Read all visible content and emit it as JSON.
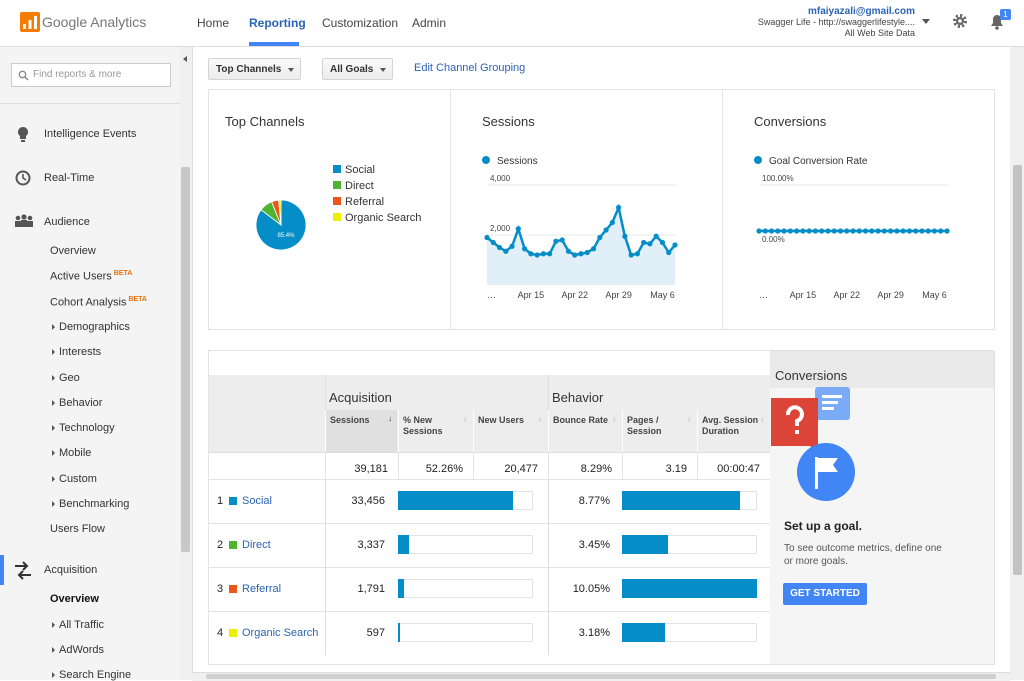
{
  "header": {
    "logo": "Google Analytics",
    "nav": [
      "Home",
      "Reporting",
      "Customization",
      "Admin"
    ],
    "account": {
      "email": "mfaiyazali@gmail.com",
      "property": "Swagger Life - http://swaggerlifestyle....",
      "view": "All Web Site Data"
    },
    "notifications": "1"
  },
  "sidebar": {
    "search_placeholder": "Find reports & more",
    "sections": [
      {
        "label": "Intelligence Events"
      },
      {
        "label": "Real-Time"
      },
      {
        "label": "Audience",
        "items": [
          {
            "label": "Overview"
          },
          {
            "label": "Active Users",
            "badge": "BETA"
          },
          {
            "label": "Cohort Analysis",
            "badge": "BETA"
          },
          {
            "label": "Demographics",
            "expandable": true
          },
          {
            "label": "Interests",
            "expandable": true
          },
          {
            "label": "Geo",
            "expandable": true
          },
          {
            "label": "Behavior",
            "expandable": true
          },
          {
            "label": "Technology",
            "expandable": true
          },
          {
            "label": "Mobile",
            "expandable": true
          },
          {
            "label": "Custom",
            "expandable": true
          },
          {
            "label": "Benchmarking",
            "expandable": true
          },
          {
            "label": "Users Flow"
          }
        ]
      },
      {
        "label": "Acquisition",
        "active": true,
        "items": [
          {
            "label": "Overview",
            "selected": true
          },
          {
            "label": "All Traffic",
            "expandable": true
          },
          {
            "label": "AdWords",
            "expandable": true
          },
          {
            "label": "Search Engine",
            "expandable": true
          }
        ]
      }
    ]
  },
  "toolbar": {
    "dimension": "Top Channels",
    "goal": "All Goals",
    "link": "Edit Channel Grouping"
  },
  "chart_data": [
    {
      "type": "pie",
      "title": "Top Channels",
      "categories": [
        "Social",
        "Direct",
        "Referral",
        "Organic Search"
      ],
      "values": [
        85.4,
        8.5,
        4.6,
        1.5
      ],
      "value_labels": [
        "85.4%",
        null,
        null,
        null
      ],
      "colors": [
        "#058dc7",
        "#50b432",
        "#ed561b",
        "#edef00"
      ]
    },
    {
      "type": "line",
      "title": "Sessions",
      "categories": [
        "…",
        null,
        null,
        null,
        null,
        null,
        null,
        "Apr 15",
        null,
        null,
        null,
        null,
        null,
        null,
        "Apr 22",
        null,
        null,
        null,
        null,
        null,
        null,
        "Apr 29",
        null,
        null,
        null,
        null,
        null,
        null,
        "May 6",
        null,
        null
      ],
      "series": [
        {
          "name": "Sessions",
          "color": "#058dc7",
          "values": [
            1900,
            1700,
            1500,
            1350,
            1550,
            2250,
            1450,
            1250,
            1200,
            1250,
            1250,
            1750,
            1800,
            1350,
            1200,
            1250,
            1300,
            1450,
            1900,
            2200,
            2500,
            3100,
            1950,
            1200,
            1250,
            1700,
            1650,
            1950,
            1700,
            1300,
            1600
          ]
        }
      ],
      "ylim": [
        0,
        4000
      ],
      "yticks": [
        {
          "value": 2000,
          "label": "2,000"
        },
        {
          "value": 4000,
          "label": "4,000"
        }
      ],
      "grid": true,
      "area": true
    },
    {
      "type": "line",
      "title": "Conversions",
      "categories": [
        "…",
        null,
        null,
        null,
        null,
        null,
        null,
        "Apr 15",
        null,
        null,
        null,
        null,
        null,
        null,
        "Apr 22",
        null,
        null,
        null,
        null,
        null,
        null,
        "Apr 29",
        null,
        null,
        null,
        null,
        null,
        null,
        "May 6",
        null,
        null
      ],
      "series": [
        {
          "name": "Goal Conversion Rate",
          "color": "#058dc7",
          "values": [
            0,
            0,
            0,
            0,
            0,
            0,
            0,
            0,
            0,
            0,
            0,
            0,
            0,
            0,
            0,
            0,
            0,
            0,
            0,
            0,
            0,
            0,
            0,
            0,
            0,
            0,
            0,
            0,
            0,
            0,
            0
          ]
        }
      ],
      "ylim": [
        0,
        100
      ],
      "yticks": [
        {
          "value": 0,
          "label": "0.00%"
        },
        {
          "value": 100,
          "label": "100.00%"
        }
      ],
      "grid": true,
      "area": false
    }
  ],
  "table": {
    "groups": [
      "Acquisition",
      "Behavior"
    ],
    "columns": [
      "Sessions",
      "% New Sessions",
      "New Users",
      "Bounce Rate",
      "Pages / Session",
      "Avg. Session Duration"
    ],
    "totals": [
      "39,181",
      "52.26%",
      "20,477",
      "8.29%",
      "3.19",
      "00:00:47"
    ],
    "rows": [
      {
        "rank": "1",
        "channel": "Social",
        "sessions": 33456,
        "sessions_label": "33,456",
        "bounce_rate": 8.77,
        "bounce_rate_label": "8.77%"
      },
      {
        "rank": "2",
        "channel": "Direct",
        "sessions": 3337,
        "sessions_label": "3,337",
        "bounce_rate": 3.45,
        "bounce_rate_label": "3.45%"
      },
      {
        "rank": "3",
        "channel": "Referral",
        "sessions": 1791,
        "sessions_label": "1,791",
        "bounce_rate": 10.05,
        "bounce_rate_label": "10.05%"
      },
      {
        "rank": "4",
        "channel": "Organic Search",
        "sessions": 597,
        "sessions_label": "597",
        "bounce_rate": 3.18,
        "bounce_rate_label": "3.18%"
      }
    ]
  },
  "goal_panel": {
    "title": "Conversions",
    "heading": "Set up a goal.",
    "text": "To see outcome metrics, define one or more goals.",
    "button": "GET STARTED"
  }
}
